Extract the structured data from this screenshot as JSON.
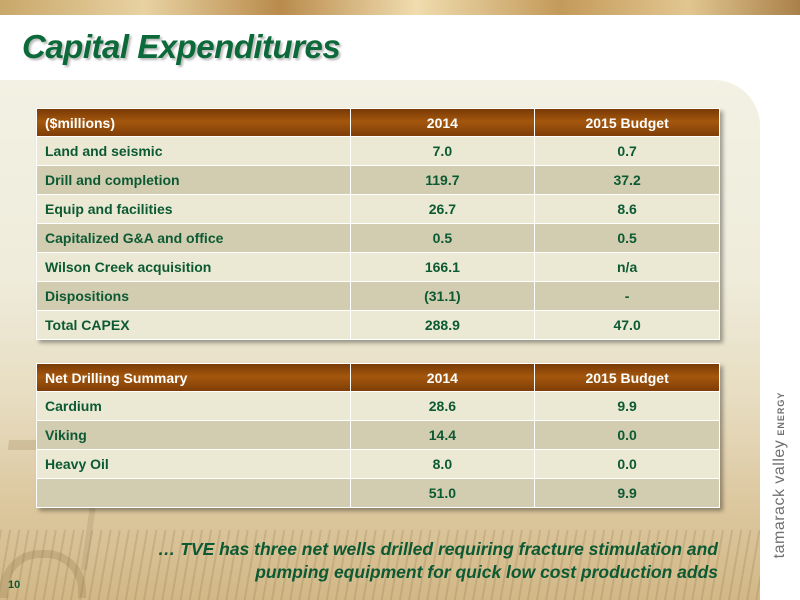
{
  "slide": {
    "title": "Capital Expenditures",
    "page_number": "10",
    "footnote_line1": "… TVE has three net wells drilled requiring fracture stimulation and",
    "footnote_line2": "pumping equipment for quick low cost production adds"
  },
  "brand": {
    "name": "tamarack valley",
    "suffix": "ENERGY"
  },
  "capex_table": {
    "headers": [
      "($millions)",
      "2014",
      "2015 Budget"
    ],
    "rows": [
      [
        "Land and seismic",
        "7.0",
        "0.7"
      ],
      [
        "Drill and completion",
        "119.7",
        "37.2"
      ],
      [
        "Equip and facilities",
        "26.7",
        "8.6"
      ],
      [
        "Capitalized G&A and office",
        "0.5",
        "0.5"
      ],
      [
        "Wilson Creek acquisition",
        "166.1",
        "n/a"
      ],
      [
        "Dispositions",
        "(31.1)",
        "-"
      ],
      [
        "Total CAPEX",
        "288.9",
        "47.0"
      ]
    ]
  },
  "drilling_table": {
    "headers": [
      "Net Drilling Summary",
      "2014",
      "2015 Budget"
    ],
    "rows": [
      [
        "Cardium",
        "28.6",
        "9.9"
      ],
      [
        "Viking",
        "14.4",
        "0.0"
      ],
      [
        "Heavy Oil",
        "8.0",
        "0.0"
      ],
      [
        "",
        "51.0",
        "9.9"
      ]
    ]
  },
  "colors": {
    "title_green": "#0c6a3a",
    "text_green": "#0c5a33",
    "header_brown": "#8b4509",
    "row_light": "#ebe8d3",
    "row_dark": "#d2cdb0"
  }
}
